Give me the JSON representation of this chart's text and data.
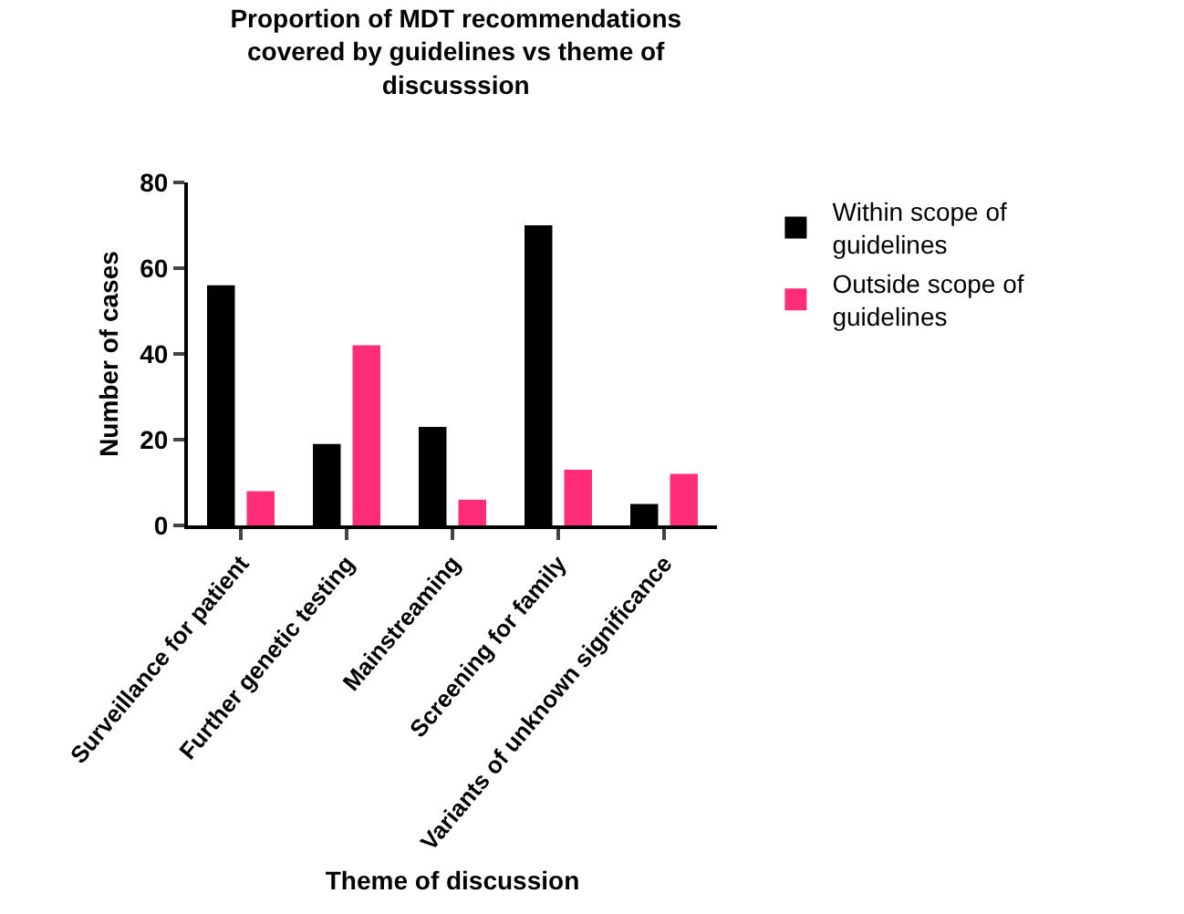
{
  "chart_data": {
    "type": "bar",
    "title": "Proportion of MDT recommendations covered by guidelines vs theme of discusssion",
    "xlabel": "Theme of discussion",
    "ylabel": "Number of cases",
    "categories": [
      "Surveillance for patient",
      "Further genetic testing",
      "Mainstreaming",
      "Screening for family",
      "Variants of unknown significance"
    ],
    "series": [
      {
        "name": "Within scope of guidelines",
        "color": "#000000",
        "values": [
          56,
          19,
          23,
          70,
          5
        ]
      },
      {
        "name": "Outside scope of guidelines",
        "color": "#ff2d78",
        "values": [
          8,
          42,
          6,
          13,
          12
        ]
      }
    ],
    "ylim": [
      0,
      80
    ],
    "yticks": [
      0,
      20,
      40,
      60,
      80
    ],
    "grid": false,
    "legend": "top right"
  }
}
